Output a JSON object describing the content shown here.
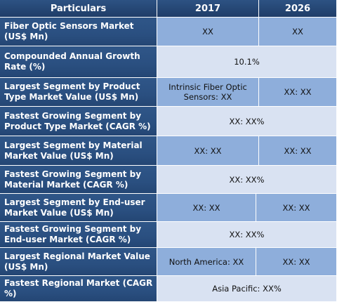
{
  "header": {
    "particulars": "Particulars",
    "year1": "2017",
    "year2": "2026"
  },
  "rows": [
    {
      "label": "Fiber Optic Sensors Market (US$ Mn)",
      "v2017": "XX",
      "v2026": "XX"
    },
    {
      "label": "Compounded Annual Growth Rate (%)",
      "value": "10.1%"
    },
    {
      "label": "Largest Segment by Product Type Market Value (US$ Mn)",
      "v2017": "Intrinsic Fiber Optic Sensors: XX",
      "v2026": "XX: XX"
    },
    {
      "label": "Fastest Growing Segment by Product Type Market (CAGR %)",
      "value": "XX: XX%"
    },
    {
      "label": "Largest Segment by Material Market Value (US$ Mn)",
      "v2017": "XX: XX",
      "v2026": "XX: XX"
    },
    {
      "label": "Fastest Growing Segment by Material Market (CAGR %)",
      "value": "XX: XX%"
    },
    {
      "label": "Largest Segment by End-user Market Value (US$ Mn)",
      "v2017": "XX: XX",
      "v2026": "XX: XX"
    },
    {
      "label": "Fastest Growing Segment by End-user Market (CAGR %)",
      "value": "XX: XX%"
    },
    {
      "label": "Largest Regional Market Value (US$ Mn)",
      "v2017": "North America: XX",
      "v2026": "XX: XX"
    },
    {
      "label": "Fastest Regional Market (CAGR %)",
      "value": "Asia Pacific: XX%"
    }
  ]
}
